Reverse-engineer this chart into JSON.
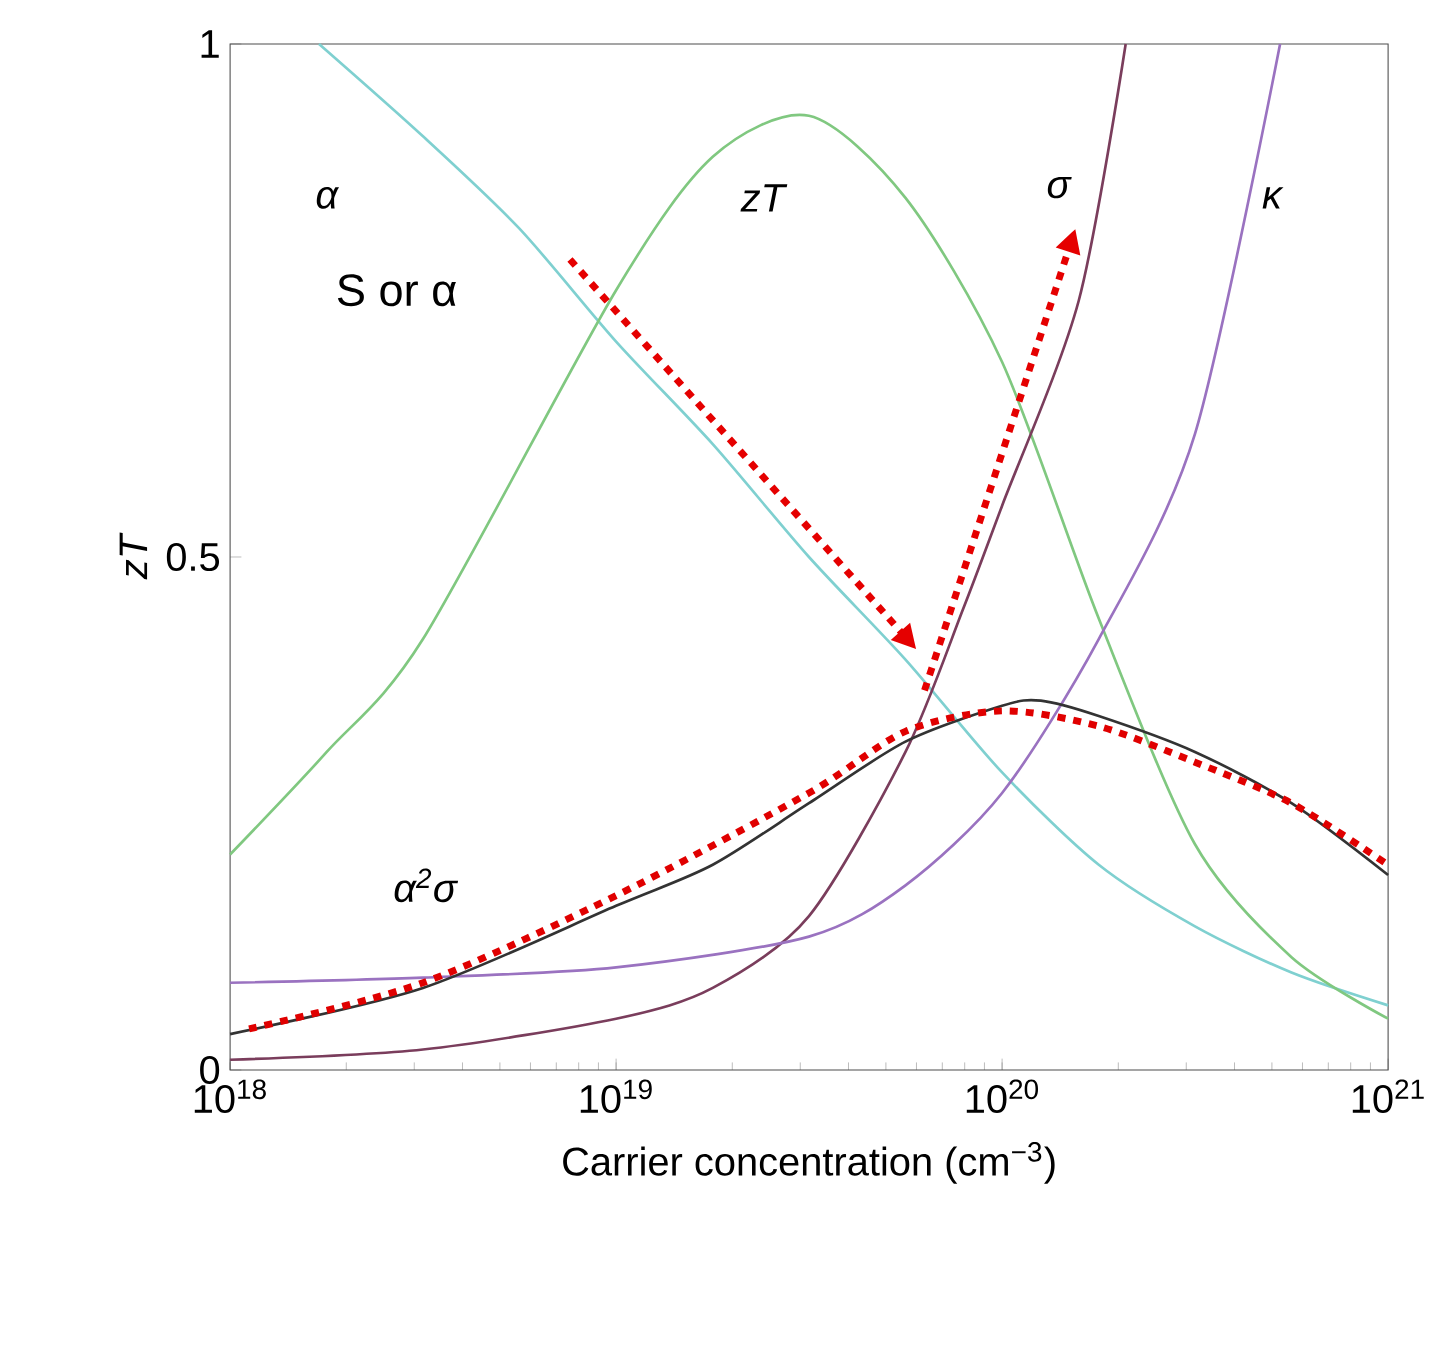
{
  "chart_data": {
    "type": "line",
    "log": "x",
    "xlabel": "Carrier concentration (cm$^{−3}$)",
    "ylabel": "zT",
    "xlim": [
      1e+18,
      1e+21
    ],
    "ylim": [
      0,
      1
    ],
    "xticks": [
      {
        "value": 1e+18,
        "label": "10$^{18}$"
      },
      {
        "value": 1e+19,
        "label": "10$^{19}$"
      },
      {
        "value": 1e+20,
        "label": "10$^{20}$"
      },
      {
        "value": 1e+21,
        "label": "10$^{21}$"
      }
    ],
    "yticks": [
      0,
      0.5,
      1
    ],
    "grid": false,
    "legend": false,
    "marker": "none",
    "line_style": "solid",
    "annotations": [
      "S or α"
    ],
    "series": [
      {
        "name": "α",
        "color": "#7fd0d0",
        "x": [
          1.7e+18,
          3.16e+18,
          5.62e+18,
          1e+19,
          1.78e+19,
          3.16e+19,
          5.62e+19,
          1e+20,
          1.78e+20,
          3.16e+20,
          5.62e+20,
          1e+21
        ],
        "values": [
          1.0,
          0.91,
          0.82,
          0.71,
          0.61,
          0.5,
          0.4,
          0.29,
          0.2,
          0.14,
          0.095,
          0.063
        ]
      },
      {
        "name": "zT",
        "color": "#80c880",
        "x": [
          1e+18,
          1.78e+18,
          3.16e+18,
          1e+19,
          1.78e+19,
          3.16e+19,
          5.62e+19,
          1e+20,
          1.78e+20,
          3.16e+20,
          5.62e+20,
          1e+21
        ],
        "values": [
          0.21,
          0.31,
          0.42,
          0.76,
          0.89,
          0.93,
          0.85,
          0.69,
          0.44,
          0.22,
          0.11,
          0.05
        ]
      },
      {
        "name": "σ",
        "color": "#7a3d5c",
        "x": [
          1e+18,
          3.16e+18,
          1e+19,
          1.78e+19,
          3.16e+19,
          5.62e+19,
          7.94e+19,
          1e+20,
          1.58e+20,
          2.09e+20
        ],
        "values": [
          0.01,
          0.02,
          0.05,
          0.08,
          0.15,
          0.31,
          0.45,
          0.55,
          0.75,
          1.0
        ]
      },
      {
        "name": "κ",
        "color": "#9a72c0",
        "x": [
          1e+18,
          3.16e+18,
          1e+19,
          3.16e+19,
          5.62e+19,
          1e+20,
          1.78e+20,
          3.16e+20,
          5.25e+20
        ],
        "values": [
          0.085,
          0.09,
          0.1,
          0.13,
          0.18,
          0.27,
          0.42,
          0.62,
          1.0
        ]
      },
      {
        "name": "α$^{2}$σ",
        "color": "#333333",
        "x": [
          1e+18,
          3.16e+18,
          1e+19,
          1.78e+19,
          3.16e+19,
          5.62e+19,
          1e+20,
          1.26e+20,
          1.78e+20,
          3.16e+20,
          5.62e+20,
          1e+21
        ],
        "values": [
          0.035,
          0.08,
          0.16,
          0.2,
          0.26,
          0.32,
          0.355,
          0.36,
          0.345,
          0.31,
          0.26,
          0.19
        ]
      },
      {
        "color": "#e00000",
        "line_style": "dotted",
        "x": [
          1.12e+18,
          3.16e+18,
          1e+19,
          3.16e+19,
          5.62e+19,
          1e+20,
          1.78e+20,
          3.16e+20,
          5.62e+20,
          1e+21
        ],
        "values": [
          0.04,
          0.085,
          0.17,
          0.27,
          0.33,
          0.35,
          0.335,
          0.3,
          0.26,
          0.2
        ]
      }
    ]
  }
}
